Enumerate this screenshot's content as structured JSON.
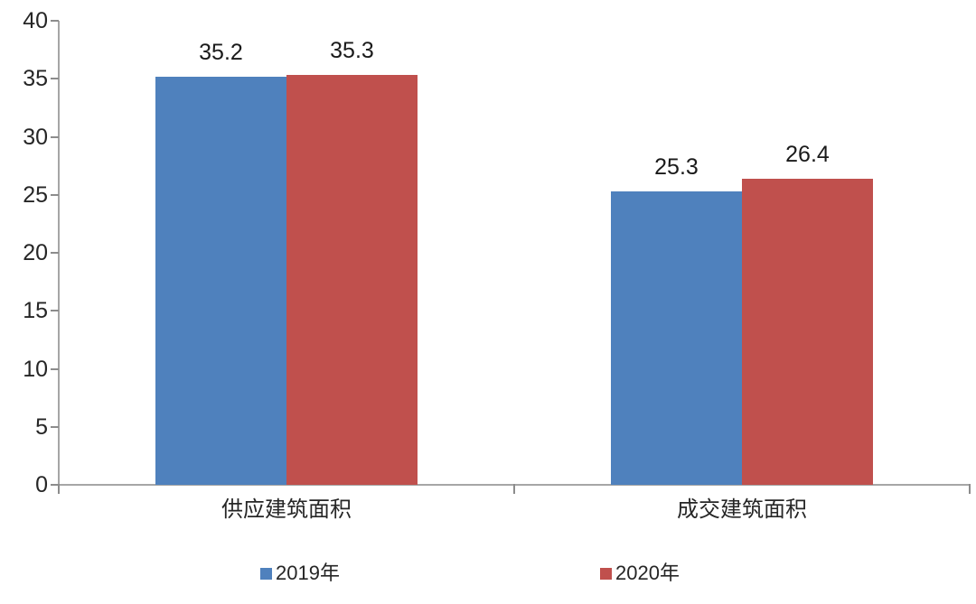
{
  "chart_data": {
    "type": "bar",
    "categories": [
      "供应建筑面积",
      "成交建筑面积"
    ],
    "series": [
      {
        "name": "2019年",
        "color": "#4F81BD",
        "values": [
          35.2,
          25.3
        ],
        "labels": [
          "35.2",
          "25.3"
        ]
      },
      {
        "name": "2020年",
        "color": "#C0504D",
        "values": [
          35.3,
          26.4
        ],
        "labels": [
          "35.3",
          "26.4"
        ]
      }
    ],
    "title": "",
    "xlabel": "",
    "ylabel": "",
    "ylim": [
      0,
      40
    ],
    "yticks": [
      "0",
      "5",
      "10",
      "15",
      "20",
      "25",
      "30",
      "35",
      "40"
    ],
    "grid": false,
    "data_labels_shown": true,
    "legend_position": "bottom"
  },
  "colors": {
    "axis": "#a6a6a6",
    "text": "#262626",
    "background": "#ffffff",
    "series_2019": "#4F81BD",
    "series_2020": "#C0504D"
  }
}
